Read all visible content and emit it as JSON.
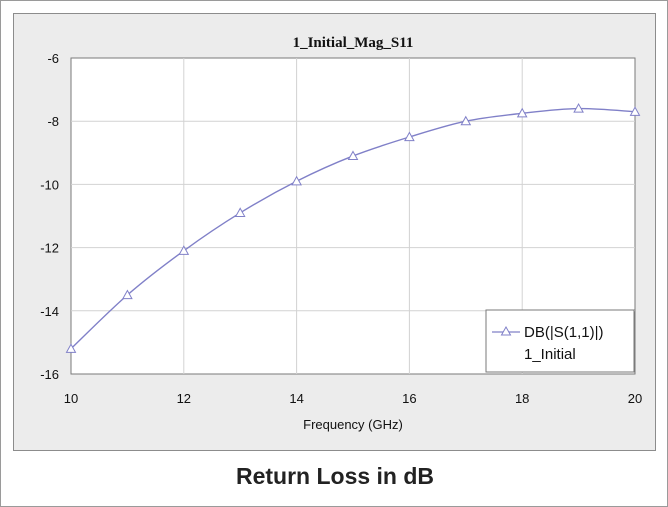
{
  "caption": "Return Loss in dB",
  "chart_data": {
    "type": "line",
    "title": "1_Initial_Mag_S11",
    "xlabel": "Frequency (GHz)",
    "ylabel": "",
    "xlim": [
      10,
      20
    ],
    "ylim": [
      -16,
      -6
    ],
    "x_ticks": [
      10,
      12,
      14,
      16,
      18,
      20
    ],
    "y_ticks": [
      -6,
      -8,
      -10,
      -12,
      -14,
      -16
    ],
    "x_tick_labels": [
      "10",
      "12",
      "14",
      "16",
      "18",
      "20"
    ],
    "y_tick_labels": [
      "-6",
      "-8",
      "-10",
      "-12",
      "-14",
      "-16"
    ],
    "grid": true,
    "legend_position": "bottom-right",
    "legend": [
      "DB(|S(1,1)|)",
      "1_Initial"
    ],
    "series": [
      {
        "name": "DB(|S(1,1)|)",
        "color": "#8080c8",
        "marker": "triangle-open",
        "x": [
          10,
          11,
          12,
          13,
          14,
          15,
          16,
          17,
          18,
          19,
          20
        ],
        "y": [
          -15.2,
          -13.5,
          -12.1,
          -10.9,
          -9.9,
          -9.1,
          -8.5,
          -8.0,
          -7.75,
          -7.6,
          -7.7
        ]
      }
    ]
  }
}
